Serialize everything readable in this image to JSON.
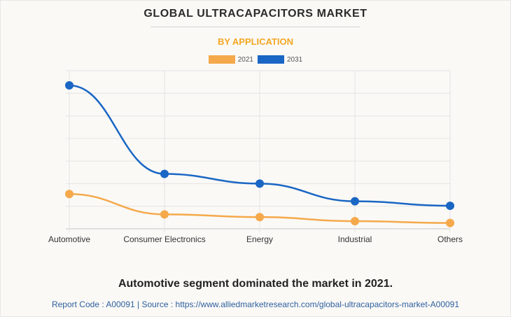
{
  "chart_data": {
    "type": "line",
    "title": "GLOBAL ULTRACAPACITORS MARKET",
    "subtitle": "BY APPLICATION",
    "categories": [
      "Automotive",
      "Consumer Electronics",
      "Energy",
      "Industrial",
      "Others"
    ],
    "series": [
      {
        "name": "2021",
        "color": "#f5a94b",
        "values": [
          1.54,
          0.64,
          0.52,
          0.34,
          0.26
        ]
      },
      {
        "name": "2031",
        "color": "#1a66c4",
        "values": [
          6.35,
          2.43,
          2.0,
          1.22,
          1.02
        ]
      }
    ],
    "ylim": [
      0,
      7
    ],
    "grid": true,
    "legend_position": "top-center",
    "caption": "Automotive segment dominated the market in 2021.",
    "source_line": "Report Code : A00091  |  Source : https://www.alliedmarketresearch.com/global-ultracapacitors-market-A00091"
  }
}
